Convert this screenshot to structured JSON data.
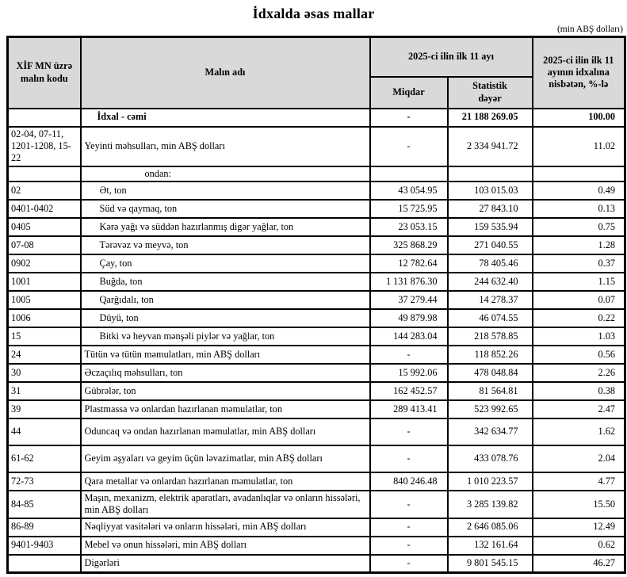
{
  "title": "İdxalda əsas mallar",
  "unit_note": "(min ABŞ dolları)",
  "table": {
    "headers": {
      "code": "XİF MN üzrə malın kodu",
      "name": "Malın adı",
      "period_group": "2025-ci ilin ilk 11 ayı",
      "quantity": "Miqdar",
      "stat_value": "Statistik dəyər",
      "share": "2025-ci ilin ilk 11 ayının idxalına nisbətən, %-lə"
    },
    "rows": [
      {
        "kind": "total",
        "code": "",
        "name": "İdxal - cəmi",
        "quantity": "-",
        "value": "21 188 269.05",
        "share": "100.00"
      },
      {
        "kind": "main",
        "code": "02-04, 07-11, 1201-1208, 15-22",
        "name": "Yeyinti məhsulları, min ABŞ dolları",
        "quantity": "-",
        "value": "2 334 941.72",
        "share": "11.02"
      },
      {
        "kind": "ofwhich",
        "code": "",
        "name": "ondan:",
        "quantity": "",
        "value": "",
        "share": ""
      },
      {
        "kind": "sub",
        "code": "02",
        "name": "Ət, ton",
        "quantity": "43 054.95",
        "value": "103 015.03",
        "share": "0.49"
      },
      {
        "kind": "sub",
        "code": "0401-0402",
        "name": "Süd və qaymaq, ton",
        "quantity": "15 725.95",
        "value": "27 843.10",
        "share": "0.13"
      },
      {
        "kind": "sub",
        "code": "0405",
        "name": "Kərə yağı və süddən hazırlanmış digər yağlar, ton",
        "quantity": "23 053.15",
        "value": "159 535.94",
        "share": "0.75"
      },
      {
        "kind": "sub",
        "code": "07-08",
        "name": "Tərəvəz və meyvə, ton",
        "quantity": "325 868.29",
        "value": "271 040.55",
        "share": "1.28"
      },
      {
        "kind": "sub",
        "code": "0902",
        "name": "Çay, ton",
        "quantity": "12 782.64",
        "value": "78 405.46",
        "share": "0.37"
      },
      {
        "kind": "sub",
        "code": "1001",
        "name": "Buğda, ton",
        "quantity": "1 131 876.30",
        "value": "244 632.40",
        "share": "1.15"
      },
      {
        "kind": "sub",
        "code": "1005",
        "name": "Qarğıdalı, ton",
        "quantity": "37 279.44",
        "value": "14 278.37",
        "share": "0.07"
      },
      {
        "kind": "sub",
        "code": "1006",
        "name": "Düyü, ton",
        "quantity": "49 879.98",
        "value": "46 074.55",
        "share": "0.22"
      },
      {
        "kind": "sub",
        "code": "15",
        "name": "Bitki və heyvan mənşəli piylər və yağlar, ton",
        "quantity": "144 283.04",
        "value": "218 578.85",
        "share": "1.03"
      },
      {
        "kind": "main",
        "code": "24",
        "name": "Tütün və tütün məmulatları, min ABŞ dolları",
        "quantity": "-",
        "value": "118 852.26",
        "share": "0.56"
      },
      {
        "kind": "main",
        "code": "30",
        "name": "Əczaçılıq məhsulları, ton",
        "quantity": "15 992.06",
        "value": "478 048.84",
        "share": "2.26"
      },
      {
        "kind": "main",
        "code": "31",
        "name": "Gübrələr, ton",
        "quantity": "162 452.57",
        "value": "81 564.81",
        "share": "0.38"
      },
      {
        "kind": "main",
        "code": "39",
        "name": "Plastmassa və onlardan hazırlanan məmulatlar, ton",
        "quantity": "289 413.41",
        "value": "523 992.65",
        "share": "2.47"
      },
      {
        "kind": "main",
        "tall": true,
        "code": "44",
        "name": "Oduncaq və ondan hazırlanan məmulatlar, min ABŞ dolları",
        "quantity": "-",
        "value": "342 634.77",
        "share": "1.62"
      },
      {
        "kind": "main",
        "tall": true,
        "code": "61-62",
        "name": "Geyim əşyaları və geyim üçün ləvazimatlar, min ABŞ dolları",
        "quantity": "-",
        "value": "433 078.76",
        "share": "2.04"
      },
      {
        "kind": "main",
        "code": "72-73",
        "name": "Qara metallar və onlardan hazırlanan məmulatlar, ton",
        "quantity": "840 246.48",
        "value": "1 010 223.57",
        "share": "4.77"
      },
      {
        "kind": "main",
        "code": "84-85",
        "name": "Maşın, mexanizm, elektrik aparatları, avadanlıqlar və onların hissələri, min ABŞ dolları",
        "quantity": "-",
        "value": "3 285 139.82",
        "share": "15.50"
      },
      {
        "kind": "main",
        "code": "86-89",
        "name": "Nəqliyyat vasitələri və onların hissələri, min ABŞ dolları",
        "quantity": "-",
        "value": "2 646 085.06",
        "share": "12.49"
      },
      {
        "kind": "main",
        "code": "9401-9403",
        "name": "Mebel və onun hissələri, min ABŞ dolları",
        "quantity": "-",
        "value": "132 161.64",
        "share": "0.62"
      },
      {
        "kind": "other",
        "code": "",
        "name": "Digərləri",
        "quantity": "-",
        "value": "9 801 545.15",
        "share": "46.27"
      }
    ]
  }
}
